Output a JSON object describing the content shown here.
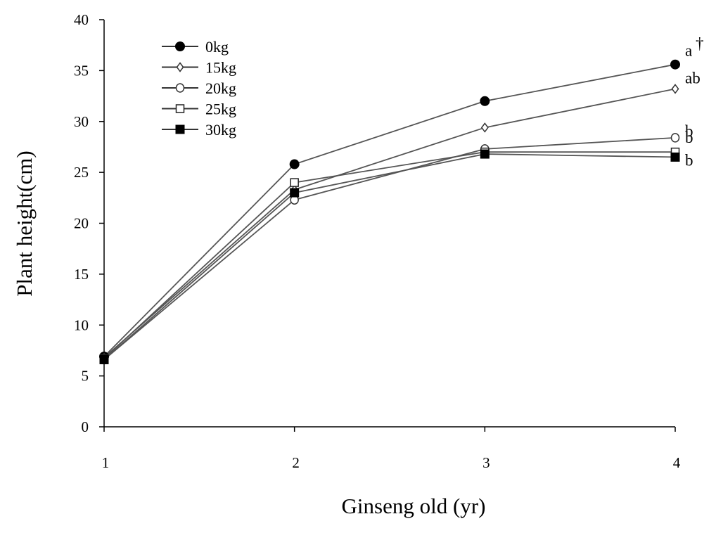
{
  "chart_data": {
    "type": "line",
    "xlabel": "Ginseng old (yr)",
    "ylabel": "Plant height(cm)",
    "x": [
      1,
      2,
      3,
      4
    ],
    "x_tick_labels": [
      "1",
      "2",
      "3",
      "4"
    ],
    "ylim": [
      0,
      40
    ],
    "y_ticks": [
      0,
      5,
      10,
      15,
      20,
      25,
      30,
      35,
      40
    ],
    "y_tick_labels": [
      "0",
      "5",
      "10",
      "15",
      "20",
      "25",
      "30",
      "35",
      "40"
    ],
    "grid": false,
    "legend_position": "top-left",
    "series": [
      {
        "name": "0kg",
        "marker": "filled-circle",
        "values": [
          6.9,
          25.8,
          32.0,
          35.6
        ]
      },
      {
        "name": "15kg",
        "marker": "open-diamond",
        "values": [
          6.8,
          23.3,
          29.4,
          33.2
        ]
      },
      {
        "name": "20kg",
        "marker": "open-circle",
        "values": [
          6.6,
          22.3,
          27.3,
          28.4
        ]
      },
      {
        "name": "25kg",
        "marker": "open-square",
        "values": [
          6.7,
          24.0,
          27.0,
          27.0
        ]
      },
      {
        "name": "30kg",
        "marker": "filled-square",
        "values": [
          6.6,
          23.0,
          26.8,
          26.5
        ]
      }
    ],
    "annotations": [
      {
        "text": "a",
        "superscript": "†",
        "series": "0kg"
      },
      {
        "text": "ab",
        "series": "15kg"
      },
      {
        "text": "b",
        "series": "20kg"
      },
      {
        "text": "b",
        "series": "25kg"
      },
      {
        "text": "b",
        "series": "30kg"
      }
    ],
    "line_color": "#555555",
    "marker_color": "#000000"
  }
}
